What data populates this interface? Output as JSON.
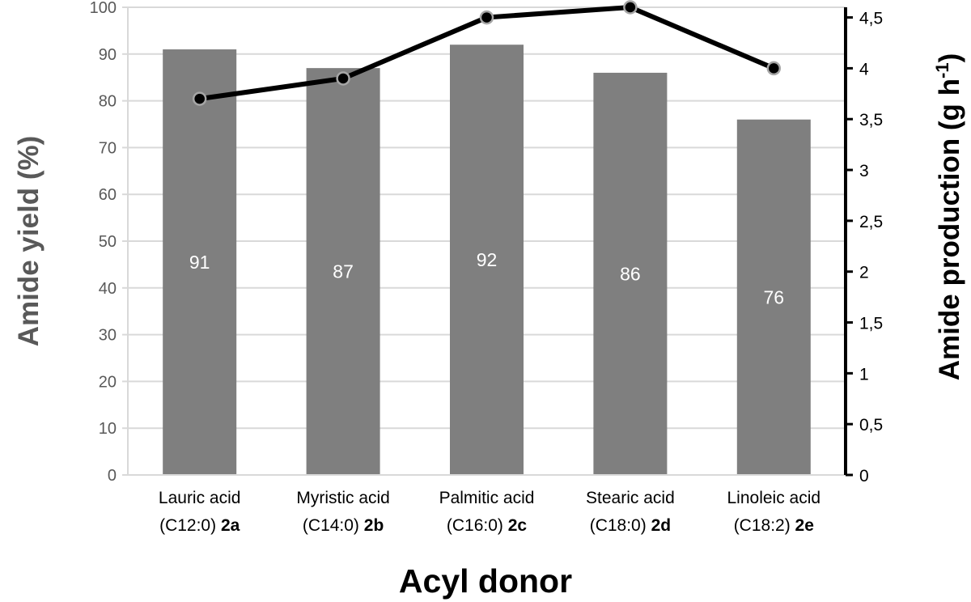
{
  "chart_data": {
    "type": "bar",
    "categories": [
      {
        "name": "Lauric acid",
        "chain": "(C12:0) ",
        "compound": "2a"
      },
      {
        "name": "Myristic acid",
        "chain": "(C14:0) ",
        "compound": "2b"
      },
      {
        "name": "Palmitic acid",
        "chain": "(C16:0) ",
        "compound": "2c"
      },
      {
        "name": "Stearic acid",
        "chain": "(C18:0) ",
        "compound": "2d"
      },
      {
        "name": "Linoleic acid",
        "chain": "(C18:2) ",
        "compound": "2e"
      }
    ],
    "series": [
      {
        "type": "bar",
        "axis": "left",
        "values": [
          91,
          87,
          92,
          86,
          76
        ],
        "color": "#7f7f7f",
        "data_labels": [
          "91",
          "87",
          "92",
          "86",
          "76"
        ]
      },
      {
        "type": "line",
        "axis": "right",
        "values": [
          3.7,
          3.9,
          4.5,
          4.6,
          4.0
        ],
        "color": "#000000"
      }
    ],
    "xlabel": "Acyl donor",
    "ylabel_left": "Amide yield (%)",
    "ylabel_right_main": "Amide production (g h",
    "ylabel_right_sup": "-1",
    "ylabel_right_close": ")",
    "ylim_left": [
      0,
      100
    ],
    "yticks_left": [
      "0",
      "10",
      "20",
      "30",
      "40",
      "50",
      "60",
      "70",
      "80",
      "90",
      "100"
    ],
    "ylim_right": [
      0,
      4.6
    ],
    "yticks_right_values": [
      0,
      0.5,
      1,
      1.5,
      2,
      2.5,
      3,
      3.5,
      4,
      4.5
    ],
    "yticks_right": [
      "0",
      "0,5",
      "1",
      "1,5",
      "2",
      "2,5",
      "3",
      "3,5",
      "4",
      "4,5"
    ],
    "grid": true,
    "grid_color": "#d9d9d9"
  }
}
